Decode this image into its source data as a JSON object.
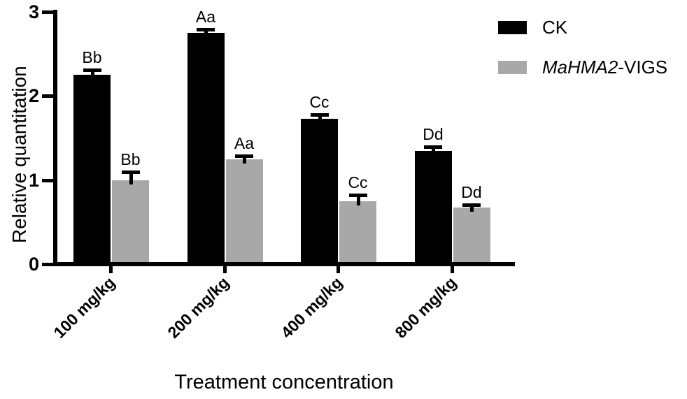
{
  "chart_data": {
    "type": "bar",
    "title": "",
    "xlabel": "Treatment concentration",
    "ylabel": "Relative quantitation",
    "categories": [
      "100 mg/kg",
      "200 mg/kg",
      "400 mg/kg",
      "800 mg/kg"
    ],
    "series": [
      {
        "name": "CK",
        "color": "#000000",
        "values": [
          2.25,
          2.75,
          1.73,
          1.35
        ],
        "errors": [
          0.06,
          0.04,
          0.05,
          0.05
        ],
        "bar_labels": [
          "Bb",
          "Aa",
          "Cc",
          "Dd"
        ]
      },
      {
        "name": "MaHMA2-VIGS",
        "name_italic": "MaHMA2",
        "name_regular": "-VIGS",
        "color": "#a8a8a8",
        "values": [
          1.0,
          1.25,
          0.75,
          0.67
        ],
        "errors": [
          0.1,
          0.04,
          0.07,
          0.04
        ],
        "bar_labels": [
          "Bb",
          "Aa",
          "Cc",
          "Dd"
        ]
      }
    ],
    "ylim": [
      0,
      3
    ],
    "yticks": [
      0,
      1,
      2,
      3
    ],
    "error_bars": "upper",
    "grid": false,
    "legend_position": "top-right",
    "axis_color": "#000000"
  }
}
